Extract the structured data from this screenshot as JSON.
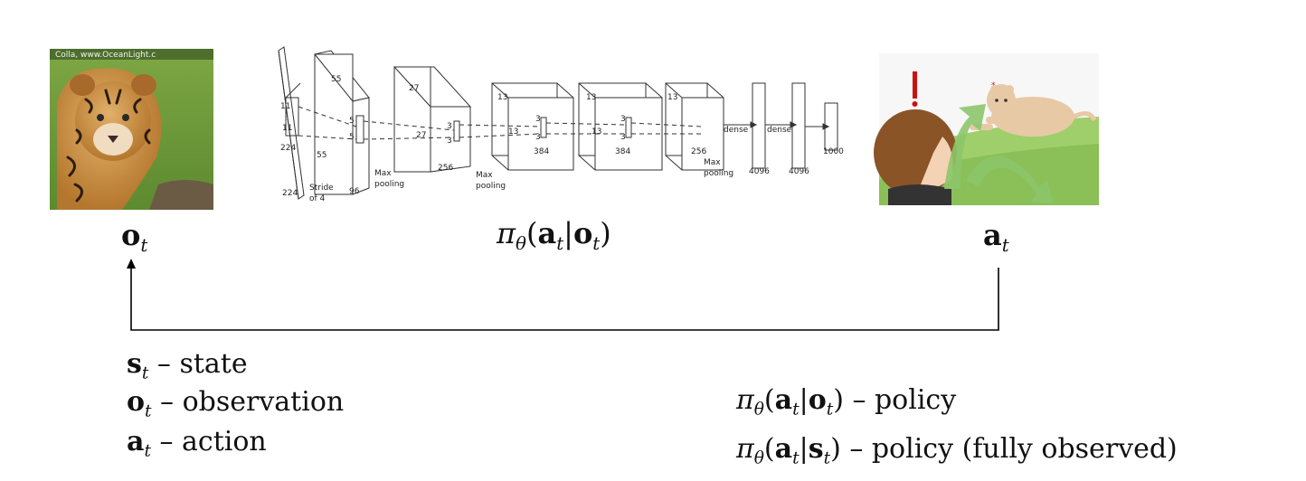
{
  "diagram": {
    "observation_panel": {
      "image": "tiger-cub-photo-icon",
      "watermark": "Colla, www.OceanLight.c"
    },
    "network_panel": {
      "image": "convolutional-network-diagram",
      "labels": {
        "l224a": "224",
        "l224b": "224",
        "l11a": "11",
        "l11b": "11",
        "l55a": "55",
        "l55b": "55",
        "l5a": "5",
        "l5b": "5",
        "l27": "27",
        "l27b": "27",
        "l3a": "3",
        "l3b": "3",
        "l13a": "13",
        "l13b": "13",
        "l13c": "13",
        "l13d": "13",
        "l13e": "13",
        "l3c": "3",
        "l3d": "3",
        "l3e": "3",
        "l3f": "3",
        "l96": "96",
        "l256a": "256",
        "l384a": "384",
        "l384b": "384",
        "l256b": "256",
        "stride1": "Stride",
        "stride2": "of 4",
        "maxpool1a": "Max",
        "maxpool1b": "pooling",
        "maxpool2a": "Max",
        "maxpool2b": "pooling",
        "maxpool3a": "Max",
        "maxpool3b": "pooling",
        "dense1": "dense",
        "dense2": "dense",
        "d4096a": "4096",
        "d4096b": "4096",
        "d1000": "1000"
      }
    },
    "action_panel": {
      "image": "person-and-lion-cartoon-icon"
    },
    "captions": {
      "observation": {
        "bold": "o",
        "sub": "t"
      },
      "policy": {
        "pi": "π",
        "theta": "θ",
        "a": "a",
        "t": "t",
        "o": "o"
      },
      "action": {
        "bold": "a",
        "sub": "t"
      }
    },
    "legend_left": [
      {
        "sym": "s",
        "sub": "t",
        "text": " – state"
      },
      {
        "sym": "o",
        "sub": "t",
        "text": " – observation"
      },
      {
        "sym": "a",
        "sub": "t",
        "text": " – action"
      }
    ],
    "legend_right": [
      {
        "cond": "o",
        "text": " – policy"
      },
      {
        "cond": "s",
        "text": " – policy (fully observed)"
      }
    ],
    "colors": {
      "tiger_fur": "#c98a3f",
      "grass_green": "#6f9a3a",
      "arrow_green": "#8cc56a",
      "feedback_arrow": "#000000"
    }
  }
}
